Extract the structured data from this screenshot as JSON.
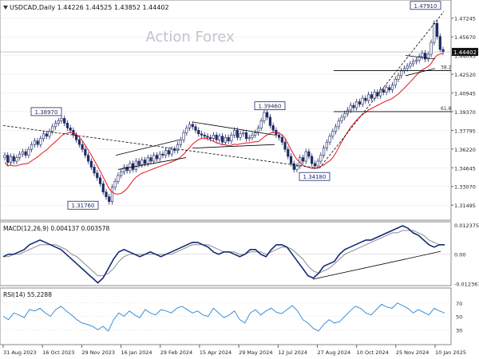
{
  "header": {
    "symbol_line": "USDCAD,Daily  1.44226 1.44525 1.43852 1.44402"
  },
  "watermark": "Action Forex",
  "colors": {
    "candle": "#1f2a66",
    "ma": "#e8121c",
    "macd": "#142a7a",
    "signal": "#8a8a8a",
    "rsi": "#3a8fd6",
    "trend": "#000000",
    "label_border": "#1f2a66",
    "grid": "#e5e5e5"
  },
  "chart_data": [
    {
      "type": "candlestick",
      "title": "USDCAD,Daily  1.44226 1.44525 1.43852 1.44402",
      "current_price": "1.44402",
      "ylim": [
        1.305,
        1.485
      ],
      "y_ticks": [
        "1.47245",
        "1.45670",
        "1.44095",
        "1.42520",
        "1.40945",
        "1.39370",
        "1.37795",
        "1.36220",
        "1.34645",
        "1.33070",
        "1.31495"
      ],
      "x_ticks": [
        "31 Aug 2023",
        "16 Oct 2023",
        "29 Nov 2023",
        "16 Jan 2024",
        "29 Feb 2024",
        "15 Apr 2024",
        "29 May 2024",
        "12 Jul 2024",
        "27 Aug 2024",
        "10 Oct 2024",
        "25 Nov 2024",
        "10 Jan 2025"
      ],
      "series": [
        {
          "values": [
            1.357,
            1.351,
            1.356,
            1.352,
            1.355,
            1.358,
            1.36,
            1.357,
            1.362,
            1.366,
            1.369,
            1.366,
            1.371,
            1.375,
            1.373,
            1.377,
            1.381,
            1.384,
            1.386,
            1.388,
            1.384,
            1.38,
            1.378,
            1.374,
            1.37,
            1.366,
            1.362,
            1.357,
            1.352,
            1.347,
            1.342,
            1.338,
            1.333,
            1.326,
            1.322,
            1.318,
            1.33,
            1.335,
            1.34,
            1.343,
            1.347,
            1.344,
            1.35,
            1.345,
            1.352,
            1.349,
            1.353,
            1.35,
            1.355,
            1.352,
            1.357,
            1.354,
            1.358,
            1.357,
            1.361,
            1.358,
            1.362,
            1.361,
            1.366,
            1.37,
            1.376,
            1.38,
            1.383,
            1.381,
            1.378,
            1.375,
            1.374,
            1.373,
            1.372,
            1.371,
            1.374,
            1.37,
            1.373,
            1.368,
            1.372,
            1.369,
            1.374,
            1.378,
            1.372,
            1.375,
            1.376,
            1.371,
            1.372,
            1.374,
            1.376,
            1.38,
            1.386,
            1.393,
            1.389,
            1.382,
            1.378,
            1.374,
            1.372,
            1.368,
            1.362,
            1.356,
            1.35,
            1.345,
            1.348,
            1.355,
            1.352,
            1.36,
            1.356,
            1.35,
            1.348,
            1.352,
            1.357,
            1.363,
            1.368,
            1.373,
            1.377,
            1.381,
            1.386,
            1.389,
            1.392,
            1.395,
            1.399,
            1.397,
            1.402,
            1.4,
            1.405,
            1.403,
            1.408,
            1.405,
            1.41,
            1.407,
            1.412,
            1.41,
            1.414,
            1.412,
            1.416,
            1.421,
            1.424,
            1.428,
            1.43,
            1.432,
            1.434,
            1.436,
            1.437,
            1.44,
            1.443,
            1.438,
            1.442,
            1.452,
            1.468,
            1.457,
            1.446,
            1.444
          ]
        }
      ]
    },
    {
      "type": "line",
      "name": "MACD(12,26,9) 0.004137 0.003578",
      "ylim": [
        -0.0125,
        0.013
      ],
      "y_ticks": [
        "0.012375",
        "0.00",
        "-0.012367"
      ],
      "series": [
        {
          "values": [
            -0.001,
            0.0,
            0.0,
            0.001,
            0.002,
            0.004,
            0.005,
            0.006,
            0.005,
            0.004,
            0.003,
            0.002,
            0.0,
            -0.002,
            -0.004,
            -0.006,
            -0.008,
            -0.01,
            -0.012,
            -0.01,
            -0.006,
            -0.002,
            0.001,
            0.002,
            0.001,
            0.0,
            -0.001,
            0.0,
            0.001,
            0.0,
            -0.001,
            0.0,
            0.001,
            0.002,
            0.003,
            0.004,
            0.005,
            0.005,
            0.004,
            0.003,
            0.001,
            0.0,
            0.001,
            0.001,
            0.0,
            -0.001,
            0.0,
            0.002,
            0.002,
            0.0,
            -0.001,
            0.002,
            0.004,
            0.004,
            0.003,
            0.0,
            -0.003,
            -0.006,
            -0.009,
            -0.01,
            -0.008,
            -0.005,
            -0.004,
            -0.003,
            0.0,
            0.002,
            0.003,
            0.004,
            0.005,
            0.006,
            0.006,
            0.007,
            0.008,
            0.009,
            0.01,
            0.011,
            0.012,
            0.011,
            0.009,
            0.008,
            0.006,
            0.004,
            0.003,
            0.004,
            0.004
          ]
        },
        {
          "values": [
            -0.001,
            -0.001,
            0.0,
            0.0,
            0.001,
            0.002,
            0.003,
            0.004,
            0.004,
            0.004,
            0.004,
            0.003,
            0.002,
            0.0,
            -0.001,
            -0.003,
            -0.005,
            -0.007,
            -0.009,
            -0.009,
            -0.008,
            -0.006,
            -0.003,
            -0.001,
            0.0,
            0.0,
            0.0,
            0.0,
            0.0,
            0.0,
            0.0,
            0.0,
            0.0,
            0.001,
            0.002,
            0.003,
            0.004,
            0.004,
            0.004,
            0.004,
            0.003,
            0.002,
            0.001,
            0.001,
            0.001,
            0.0,
            0.0,
            0.001,
            0.001,
            0.001,
            0.0,
            0.001,
            0.002,
            0.003,
            0.003,
            0.002,
            0.0,
            -0.002,
            -0.005,
            -0.007,
            -0.008,
            -0.007,
            -0.006,
            -0.004,
            -0.002,
            0.0,
            0.001,
            0.002,
            0.003,
            0.004,
            0.005,
            0.006,
            0.007,
            0.008,
            0.009,
            0.009,
            0.01,
            0.01,
            0.01,
            0.009,
            0.008,
            0.006,
            0.005,
            0.004,
            0.004
          ]
        }
      ]
    },
    {
      "type": "line",
      "name": "RSI(14) 55.2288",
      "ylim": [
        10,
        90
      ],
      "y_ticks": [
        "70",
        "50",
        "30"
      ],
      "series": [
        {
          "values": [
            50,
            45,
            55,
            52,
            48,
            60,
            58,
            62,
            55,
            50,
            60,
            65,
            58,
            52,
            45,
            40,
            38,
            35,
            30,
            35,
            28,
            45,
            55,
            50,
            58,
            52,
            48,
            60,
            55,
            52,
            60,
            58,
            55,
            62,
            65,
            60,
            55,
            58,
            52,
            50,
            62,
            55,
            48,
            52,
            58,
            45,
            40,
            55,
            60,
            52,
            58,
            62,
            56,
            54,
            60,
            66,
            58,
            45,
            40,
            32,
            28,
            38,
            45,
            40,
            42,
            50,
            58,
            65,
            62,
            55,
            52,
            60,
            68,
            64,
            62,
            70,
            66,
            62,
            55,
            60,
            56,
            52,
            62,
            58,
            55
          ]
        }
      ]
    }
  ],
  "annotations": {
    "labels": [
      "1.47910",
      "1.38970",
      "1.39460",
      "1.34180",
      "1.31760"
    ],
    "fib": [
      "38.2",
      "61.8"
    ]
  }
}
